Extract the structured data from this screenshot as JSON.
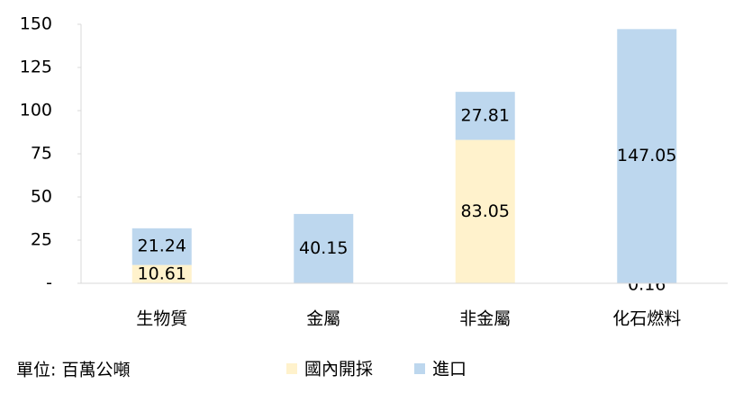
{
  "chart_data": {
    "type": "stacked_bar",
    "categories": [
      "生物質",
      "金屬",
      "非金屬",
      "化石燃料"
    ],
    "series": [
      {
        "name": "國內開採",
        "color": "#fff2cc",
        "values": [
          10.61,
          null,
          83.05,
          0.16
        ]
      },
      {
        "name": "進口",
        "color": "#bdd7ee",
        "values": [
          21.24,
          40.15,
          27.81,
          147.05
        ]
      }
    ],
    "ylim": [
      0,
      150
    ],
    "yticks": [
      {
        "value": 0,
        "label": "-"
      },
      25,
      50,
      75,
      100,
      125,
      150
    ],
    "unit_note": "單位: 百萬公噸",
    "grid": false
  }
}
